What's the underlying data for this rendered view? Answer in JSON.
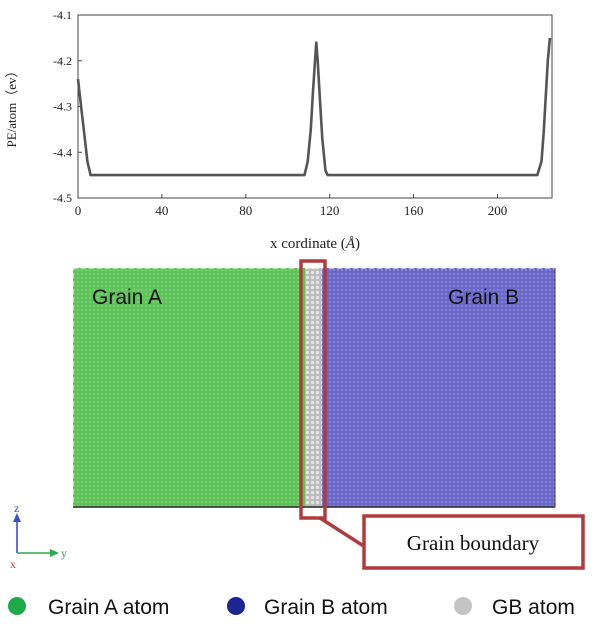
{
  "chart_data": {
    "type": "line",
    "ylabel": "PE/atom（ev）",
    "xlabel_text": "x cordinate (",
    "xlabel_unit": "Å",
    "xlabel_close": ")",
    "xlim": [
      0,
      226
    ],
    "ylim": [
      -4.5,
      -4.1
    ],
    "xticks": [
      0,
      40,
      80,
      120,
      160,
      200
    ],
    "yticks": [
      -4.1,
      -4.2,
      -4.3,
      -4.4,
      -4.5
    ],
    "ytick_labels": [
      "-4.1",
      "-4.2",
      "-4.3",
      "-4.4",
      "-4.5"
    ],
    "series": [
      {
        "color": "#555555",
        "x": [
          0,
          1.5,
          3,
          4.5,
          6,
          7,
          108,
          109.5,
          111,
          112,
          113,
          113.6,
          114.3,
          115.3,
          116.5,
          118,
          119,
          120,
          219,
          221,
          222,
          223,
          224,
          225
        ],
        "y": [
          -4.24,
          -4.3,
          -4.36,
          -4.42,
          -4.45,
          -4.45,
          -4.45,
          -4.42,
          -4.35,
          -4.27,
          -4.2,
          -4.16,
          -4.2,
          -4.28,
          -4.37,
          -4.44,
          -4.45,
          -4.45,
          -4.45,
          -4.42,
          -4.36,
          -4.28,
          -4.2,
          -4.15
        ]
      }
    ]
  },
  "simulation": {
    "grain_a_label": "Grain A",
    "grain_b_label": "Grain B",
    "gb_callout": "Grain boundary",
    "axes": {
      "z": "z",
      "x": "x",
      "y": "y"
    }
  },
  "legend": [
    {
      "label": "Grain A atom",
      "color": "#1faa4a"
    },
    {
      "label": "Grain B atom",
      "color": "#1c2590"
    },
    {
      "label": "GB atom",
      "color": "#c4c4c4"
    }
  ],
  "colors": {
    "grain_a": "#63c45e",
    "grain_b": "#6d6ccc",
    "grain_boundary": "#c7c7c7",
    "callout": "#b03a3c",
    "axis_z": "#3b4fcf",
    "axis_y": "#2fa84a",
    "axis_x": "#d23a3a"
  }
}
